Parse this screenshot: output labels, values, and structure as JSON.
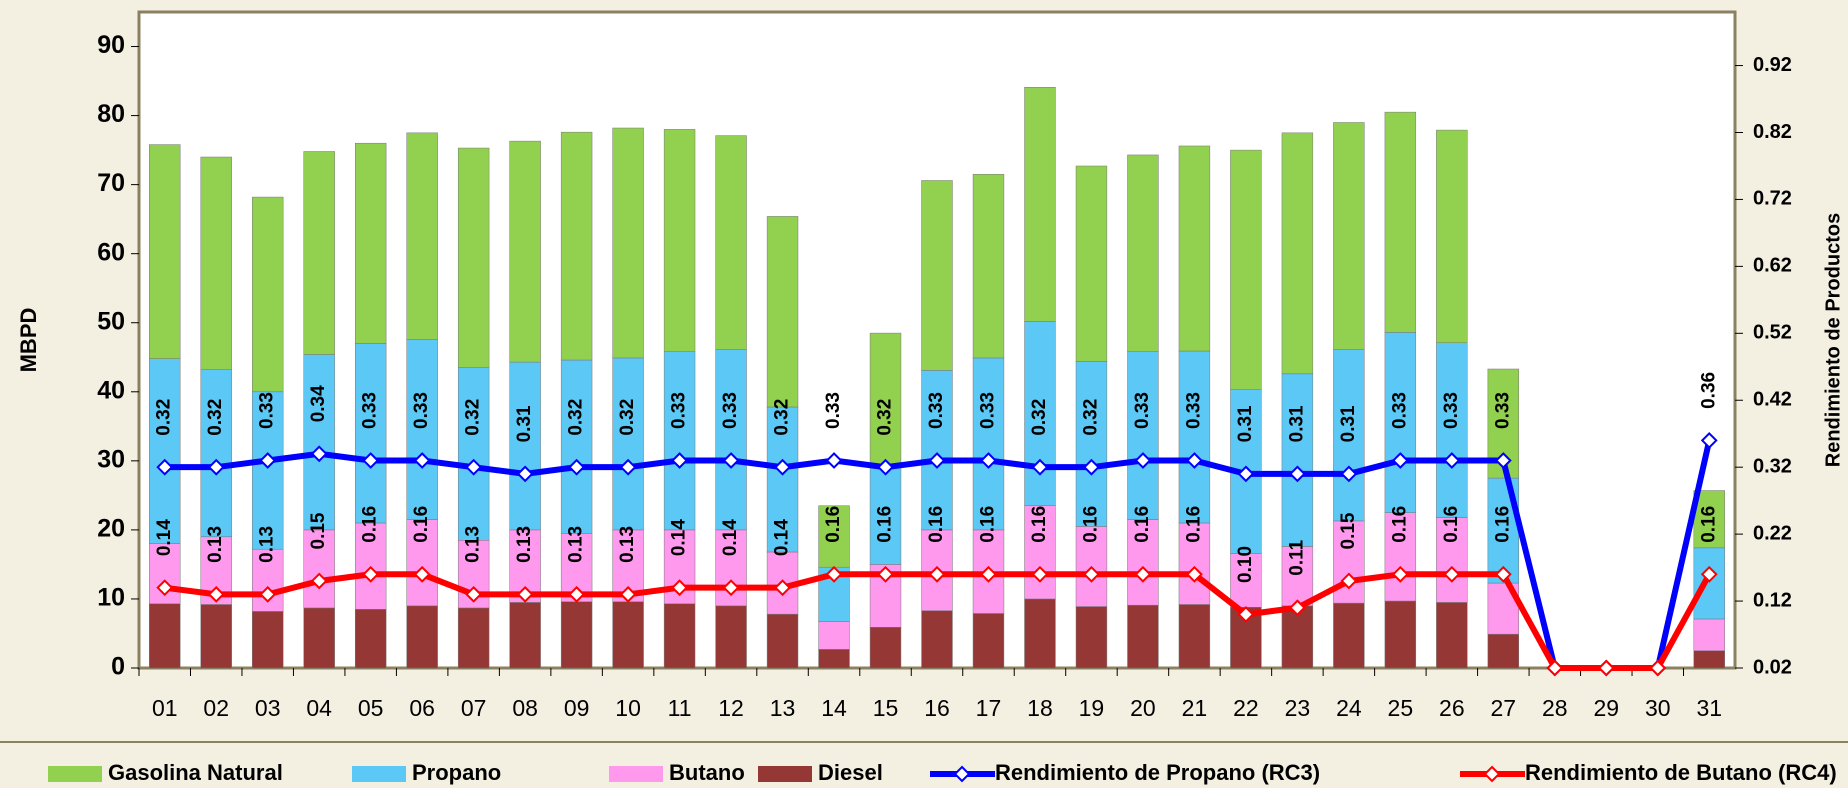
{
  "chart_data": {
    "type": "bar",
    "stacked": true,
    "y_label": "MBPD",
    "y2_label": "Rendimiento de Productos",
    "categories": [
      "01",
      "02",
      "03",
      "04",
      "05",
      "06",
      "07",
      "08",
      "09",
      "10",
      "11",
      "12",
      "13",
      "14",
      "15",
      "16",
      "17",
      "18",
      "19",
      "20",
      "21",
      "22",
      "23",
      "24",
      "25",
      "26",
      "27",
      "28",
      "29",
      "30",
      "31"
    ],
    "ylim": [
      0,
      95
    ],
    "yticks": [
      0,
      10,
      20,
      30,
      40,
      50,
      60,
      70,
      80,
      90
    ],
    "y2lim": [
      0.02,
      1.0
    ],
    "y2ticks": [
      0.02,
      0.12,
      0.22,
      0.32,
      0.42,
      0.52,
      0.62,
      0.72,
      0.82,
      0.92
    ],
    "legend": "bottom",
    "series": [
      {
        "name": "Gasolina Natural",
        "type": "bar",
        "color": "#92d050",
        "values": [
          31,
          30.8,
          28.2,
          29.4,
          29,
          29.9,
          31.8,
          32,
          33,
          33.3,
          32.2,
          31,
          27.6,
          8.9,
          19.5,
          27.5,
          26.6,
          33.9,
          28.3,
          28.5,
          29.7,
          34.7,
          34.9,
          32.9,
          31.9,
          30.8,
          15.8,
          null,
          null,
          null,
          8.3
        ]
      },
      {
        "name": "Propano",
        "type": "bar",
        "color": "#5bc8f5",
        "values": [
          26.8,
          24.2,
          22.8,
          25.4,
          26,
          26.1,
          25,
          24.3,
          25.1,
          24.9,
          25.8,
          26.1,
          21,
          7.9,
          14,
          23.1,
          24.9,
          26.7,
          23.9,
          24.3,
          24.9,
          23.7,
          25,
          24.8,
          26.1,
          25.3,
          15.2,
          null,
          null,
          null,
          10.3
        ]
      },
      {
        "name": "Butano",
        "type": "bar",
        "color": "#ff99ee",
        "values": [
          8.7,
          9.8,
          9,
          11.3,
          12.5,
          12.5,
          9.8,
          10.5,
          9.9,
          10.4,
          10.7,
          11,
          9,
          4,
          9.1,
          11.7,
          12.1,
          13.5,
          11.6,
          12.4,
          11.8,
          7.8,
          8.6,
          11.9,
          12.8,
          12.3,
          7.4,
          null,
          null,
          null,
          4.6
        ]
      },
      {
        "name": "Diesel",
        "type": "bar",
        "color": "#953735",
        "values": [
          9.3,
          9.2,
          8.2,
          8.7,
          8.5,
          9,
          8.7,
          9.5,
          9.6,
          9.6,
          9.3,
          9,
          7.8,
          2.7,
          5.9,
          8.3,
          7.9,
          10,
          8.9,
          9.1,
          9.2,
          8.8,
          9,
          9.4,
          9.7,
          9.5,
          4.9,
          null,
          null,
          null,
          2.5
        ]
      },
      {
        "name": "Rendimiento de Propano (RC3)",
        "type": "line",
        "axis": "y2",
        "color": "#0000ff",
        "values": [
          0.32,
          0.32,
          0.33,
          0.34,
          0.33,
          0.33,
          0.32,
          0.31,
          0.32,
          0.32,
          0.33,
          0.33,
          0.32,
          0.33,
          0.32,
          0.33,
          0.33,
          0.32,
          0.32,
          0.33,
          0.33,
          0.31,
          0.31,
          0.31,
          0.33,
          0.33,
          0.33,
          0.02,
          0.02,
          0.02,
          0.36
        ],
        "value_labels": [
          "0.32",
          "0.32",
          "0.33",
          "0.34",
          "0.33",
          "0.33",
          "0.32",
          "0.31",
          "0.32",
          "0.32",
          "0.33",
          "0.33",
          "0.32",
          "0.33",
          "0.32",
          "0.33",
          "0.33",
          "0.32",
          "0.32",
          "0.33",
          "0.33",
          "0.31",
          "0.31",
          "0.31",
          "0.33",
          "0.33",
          "0.33",
          null,
          null,
          null,
          "0.36"
        ]
      },
      {
        "name": "Rendimiento de Butano (RC4)",
        "type": "line",
        "axis": "y2",
        "color": "#ff0000",
        "values": [
          0.14,
          0.13,
          0.13,
          0.15,
          0.16,
          0.16,
          0.13,
          0.13,
          0.13,
          0.13,
          0.14,
          0.14,
          0.14,
          0.16,
          0.16,
          0.16,
          0.16,
          0.16,
          0.16,
          0.16,
          0.16,
          0.1,
          0.11,
          0.15,
          0.16,
          0.16,
          0.16,
          0.02,
          0.02,
          0.02,
          0.16
        ],
        "value_labels": [
          "0.14",
          "0.13",
          "0.13",
          "0.15",
          "0.16",
          "0.16",
          "0.13",
          "0.13",
          "0.13",
          "0.13",
          "0.14",
          "0.14",
          "0.14",
          "0.16",
          "0.16",
          "0.16",
          "0.16",
          "0.16",
          "0.16",
          "0.16",
          "0.16",
          "0.10",
          "0.11",
          "0.15",
          "0.16",
          "0.16",
          "0.16",
          null,
          null,
          null,
          "0.16"
        ]
      }
    ]
  }
}
